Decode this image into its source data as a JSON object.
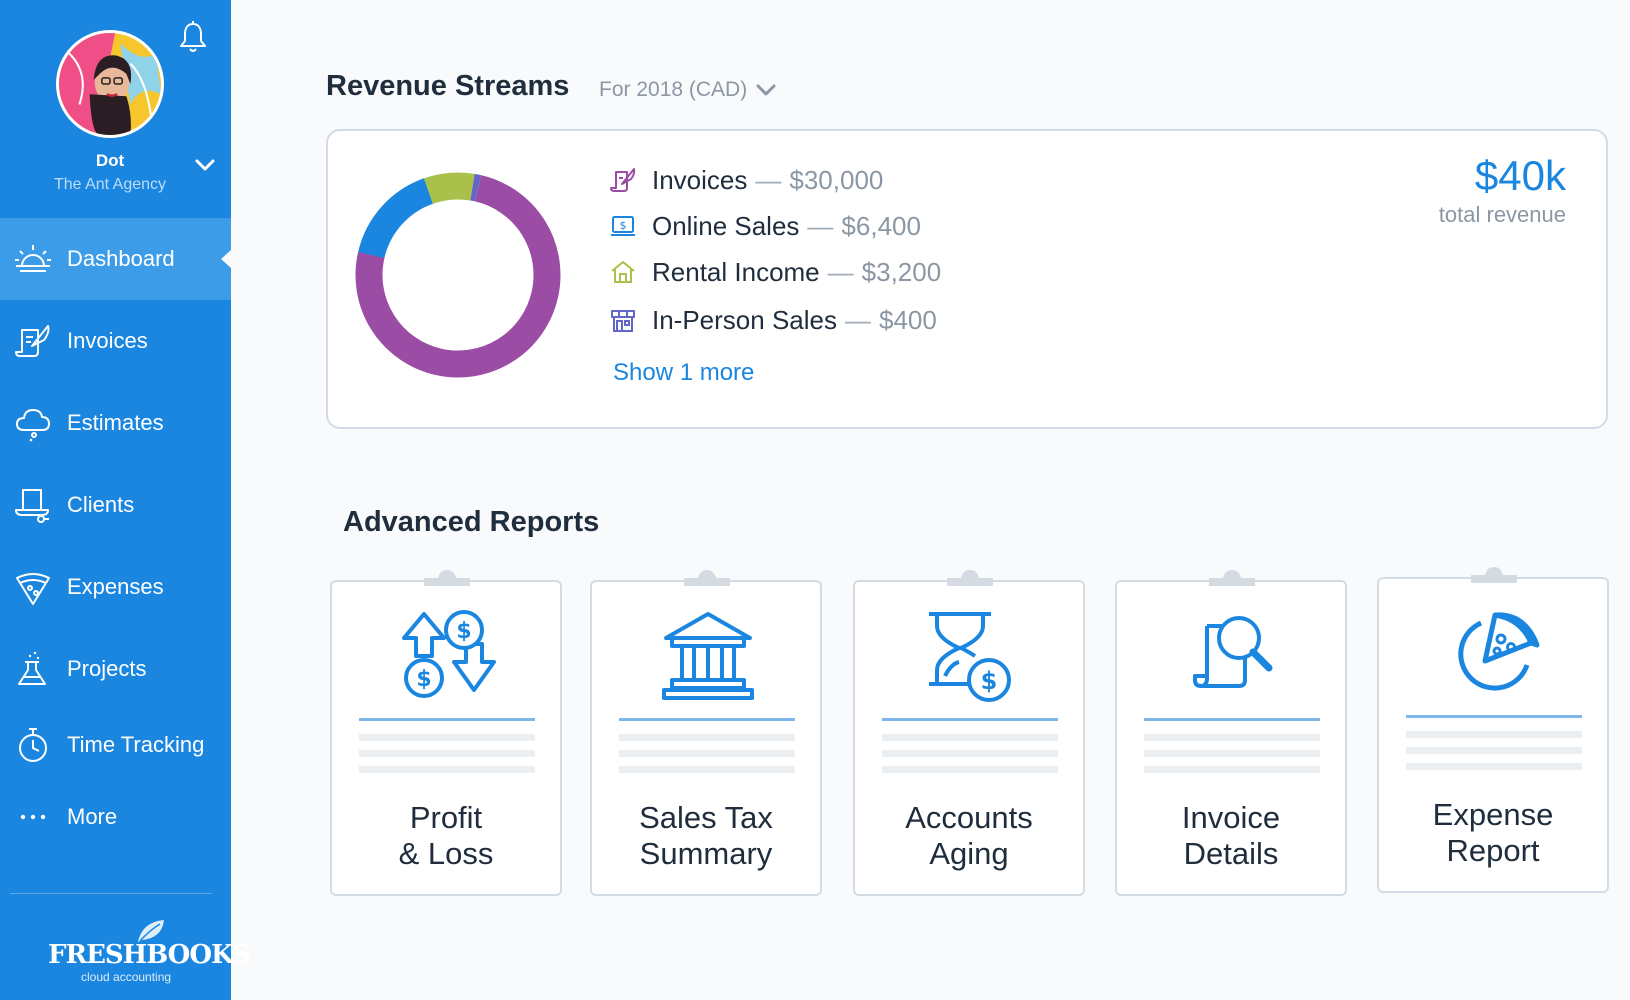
{
  "user": {
    "name": "Dot",
    "company": "The Ant Agency"
  },
  "nav": {
    "items": [
      {
        "label": "Dashboard",
        "icon": "sunrise-icon",
        "active": true
      },
      {
        "label": "Invoices",
        "icon": "invoice-quill-icon"
      },
      {
        "label": "Estimates",
        "icon": "cloud-icon"
      },
      {
        "label": "Clients",
        "icon": "clients-hat-icon"
      },
      {
        "label": "Expenses",
        "icon": "pizza-slice-icon"
      },
      {
        "label": "Projects",
        "icon": "flask-icon"
      },
      {
        "label": "Time Tracking",
        "icon": "stopwatch-icon"
      },
      {
        "label": "More",
        "icon": "more-dots-icon"
      }
    ]
  },
  "brand": {
    "name": "FRESHBOOKS",
    "tagline": "cloud accounting"
  },
  "revenue": {
    "title": "Revenue Streams",
    "period": "For 2018 (CAD)",
    "streams": [
      {
        "name": "Invoices",
        "amount": "$30,000",
        "value": 30000,
        "color": "#9b4da6",
        "icon": "invoice-quill-icon"
      },
      {
        "name": "Online Sales",
        "amount": "$6,400",
        "value": 6400,
        "color": "#1a86e0",
        "icon": "online-sales-icon"
      },
      {
        "name": "Rental Income",
        "amount": "$3,200",
        "value": 3200,
        "color": "#a9c14a",
        "icon": "house-icon"
      },
      {
        "name": "In-Person Sales",
        "amount": "$400",
        "value": 400,
        "color": "#6266c9",
        "icon": "storefront-icon"
      }
    ],
    "show_more": "Show 1 more",
    "total_value": "$40k",
    "total_label": "total revenue"
  },
  "reports": {
    "title": "Advanced Reports",
    "items": [
      {
        "line1": "Profit",
        "line2": "& Loss",
        "icon": "profit-loss-icon"
      },
      {
        "line1": "Sales Tax",
        "line2": "Summary",
        "icon": "bank-icon"
      },
      {
        "line1": "Accounts",
        "line2": "Aging",
        "icon": "hourglass-money-icon"
      },
      {
        "line1": "Invoice",
        "line2": "Details",
        "icon": "document-search-icon"
      },
      {
        "line1": "Expense",
        "line2": "Report",
        "icon": "pizza-chart-icon"
      }
    ]
  },
  "colors": {
    "sidebar": "#1a86e0",
    "sidebar_active": "#3c9ce8",
    "accent": "#1a86e0"
  }
}
